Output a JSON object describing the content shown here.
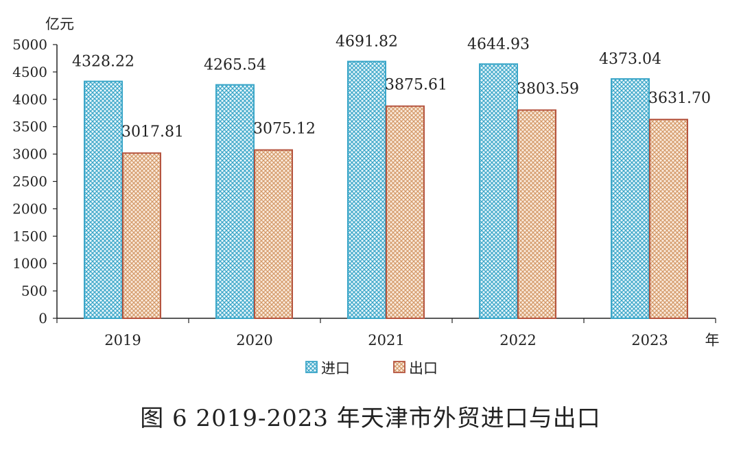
{
  "chart_data": {
    "type": "bar",
    "title": "",
    "categories": [
      "2019",
      "2020",
      "2021",
      "2022",
      "2023"
    ],
    "series": [
      {
        "name": "进口",
        "values": [
          4328.22,
          4265.54,
          4691.82,
          4644.93,
          4373.04
        ],
        "value_labels": [
          "4328.22",
          "4265.54",
          "4691.82",
          "4644.93",
          "4373.04"
        ],
        "color": "#3aa6c8"
      },
      {
        "name": "出口",
        "values": [
          3017.81,
          3075.12,
          3875.61,
          3803.59,
          3631.7
        ],
        "value_labels": [
          "3017.81",
          "3075.12",
          "3875.61",
          "3803.59",
          "3631.70"
        ],
        "color": "#b5543f"
      }
    ],
    "ylabel": "亿元",
    "xlabel": "年",
    "ylim": [
      0,
      5000
    ],
    "yticks": [
      0,
      500,
      1000,
      1500,
      2000,
      2500,
      3000,
      3500,
      4000,
      4500,
      5000
    ],
    "grid": false,
    "legend_position": "bottom-center"
  },
  "caption": "图 6   2019-2023 年天津市外贸进口与出口"
}
